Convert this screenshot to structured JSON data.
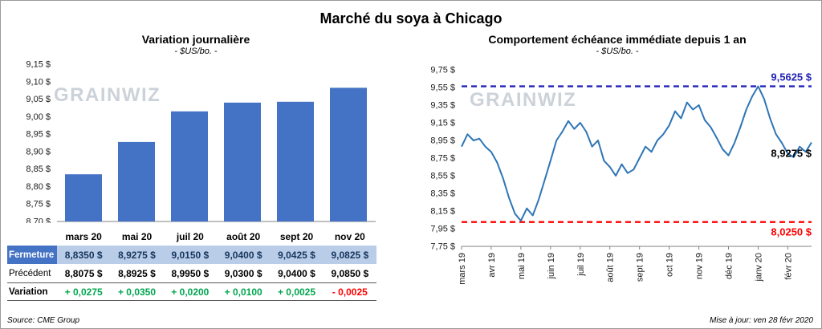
{
  "page": {
    "title": "Marché du soya à Chicago",
    "watermark": "GRAINWIZ",
    "source": "Source: CME Group",
    "updated": "Mise à jour: ven 28 févr 2020"
  },
  "left_panel": {
    "title": "Variation journalière",
    "subtitle": "- $US/bo. -"
  },
  "right_panel": {
    "title": "Comportement échéance immédiate depuis 1 an",
    "subtitle": "- $US/bo. -"
  },
  "table": {
    "columns": [
      "mars 20",
      "mai 20",
      "juil 20",
      "août 20",
      "sept 20",
      "nov 20"
    ],
    "rows": [
      {
        "label": "Fermeture",
        "style": "close",
        "values": [
          "8,8350 $",
          "8,9275 $",
          "9,0150 $",
          "9,0400 $",
          "9,0425 $",
          "9,0825 $"
        ]
      },
      {
        "label": "Précédent",
        "style": "previous",
        "values": [
          "8,8075 $",
          "8,8925 $",
          "8,9950 $",
          "9,0300 $",
          "9,0400 $",
          "9,0850 $"
        ]
      },
      {
        "label": "Variation",
        "style": "variation",
        "values": [
          "+ 0,0275",
          "+ 0,0350",
          "+ 0,0200",
          "+ 0,0100",
          "+ 0,0025",
          "- 0,0025"
        ]
      }
    ],
    "close_row_bg": "#B9CDE8",
    "close_label_bg": "#4472C4",
    "close_label_color": "#FFFFFF",
    "close_value_color": "#17365D",
    "positive_color": "#00A64F",
    "negative_color": "#FF0000"
  },
  "chart_data": [
    {
      "type": "bar",
      "title": "Variation journalière",
      "subtitle": "- $US/bo. -",
      "categories": [
        "mars 20",
        "mai 20",
        "juil 20",
        "août 20",
        "sept 20",
        "nov 20"
      ],
      "values": [
        8.835,
        8.9275,
        9.015,
        9.04,
        9.0425,
        9.0825
      ],
      "ylim": [
        8.7,
        9.15
      ],
      "ytick_step": 0.05,
      "ytick_format": "0,00 $",
      "bar_color": "#4472C4",
      "grid": false,
      "legend": false
    },
    {
      "type": "line",
      "title": "Comportement échéance immédiate depuis 1 an",
      "subtitle": "- $US/bo. -",
      "x_tick_labels": [
        "mars 19",
        "avr 19",
        "mai 19",
        "juin 19",
        "juil 19",
        "août 19",
        "sept 19",
        "oct 19",
        "nov 19",
        "déc 19",
        "janv 20",
        "févr 20"
      ],
      "points_per_month": 5,
      "series": [
        {
          "name": "échéance immédiate",
          "values": [
            8.88,
            9.02,
            8.95,
            8.97,
            8.88,
            8.82,
            8.7,
            8.52,
            8.3,
            8.12,
            8.04,
            8.18,
            8.1,
            8.28,
            8.5,
            8.72,
            8.95,
            9.05,
            9.17,
            9.08,
            9.15,
            9.05,
            8.88,
            8.95,
            8.72,
            8.65,
            8.55,
            8.68,
            8.58,
            8.62,
            8.75,
            8.88,
            8.82,
            8.95,
            9.02,
            9.12,
            9.28,
            9.2,
            9.38,
            9.3,
            9.35,
            9.18,
            9.1,
            8.98,
            8.85,
            8.78,
            8.92,
            9.1,
            9.3,
            9.45,
            9.5625,
            9.42,
            9.2,
            9.02,
            8.92,
            8.8,
            8.76,
            8.88,
            8.82,
            8.9275
          ]
        }
      ],
      "ylim": [
        7.75,
        9.75
      ],
      "ytick_step": 0.2,
      "ytick_format": "0,00 $",
      "line_color": "#2E75B6",
      "grid": false,
      "legend": false,
      "annotations": {
        "high": {
          "value": 9.5625,
          "label": "9,5625 $",
          "color": "#2222B8",
          "style": "dashed"
        },
        "low": {
          "value": 8.025,
          "label": "8,0250 $",
          "color": "#FF0000",
          "style": "dashed"
        },
        "last": {
          "value": 8.9275,
          "label": "8,9275 $",
          "color": "#000000"
        }
      }
    }
  ]
}
